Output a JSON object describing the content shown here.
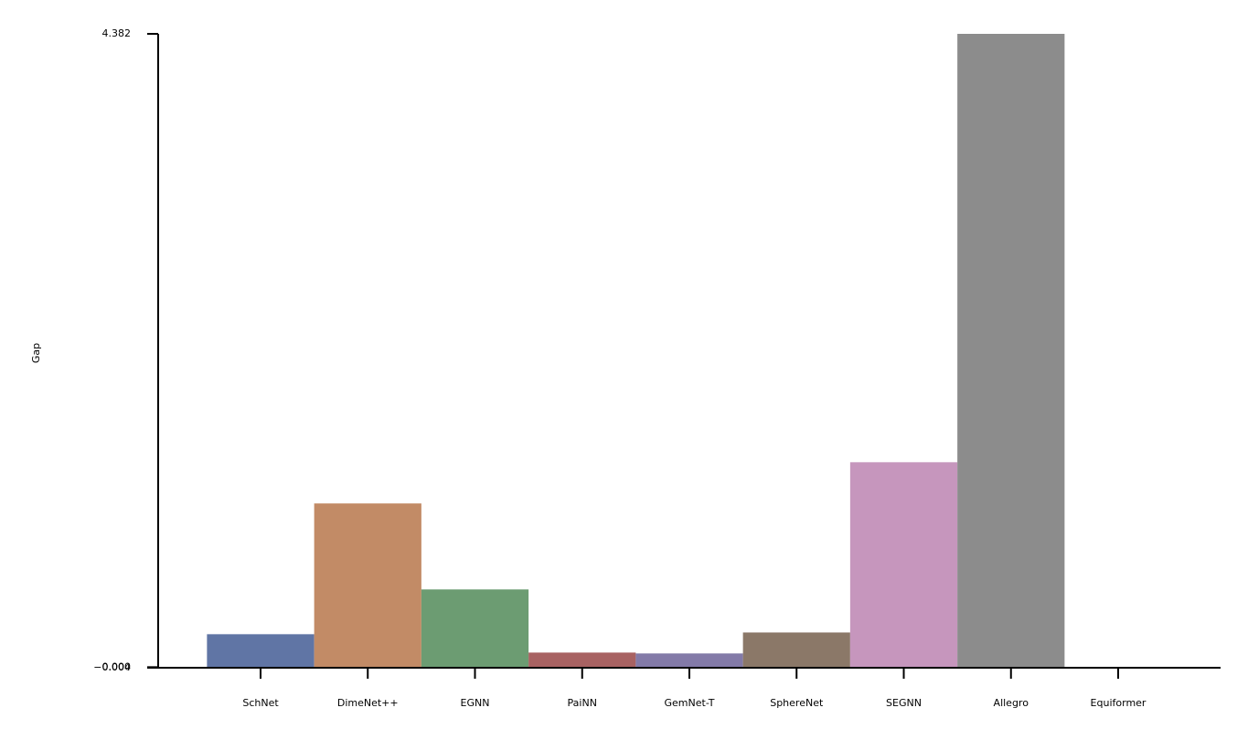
{
  "chart_data": {
    "type": "bar",
    "y_label": "Gap",
    "categories": [
      "SchNet",
      "DimeNet++",
      "EGNN",
      "PaiNN",
      "GemNet-T",
      "SphereNet",
      "SEGNN",
      "Allegro",
      "Equiformer"
    ],
    "values": [
      0.228,
      1.133,
      0.538,
      0.101,
      0.095,
      0.24,
      1.418,
      4.382,
      -0.004
    ],
    "colors": [
      "#6075a5",
      "#c28b66",
      "#6c9c72",
      "#a86262",
      "#837aa8",
      "#8b7868",
      "#c696bd",
      "#8c8c8c",
      "#c5b97e"
    ],
    "ylim": [
      -0.004,
      4.382
    ],
    "yticks": [
      {
        "value": -0.004,
        "label": "−0.004"
      },
      {
        "value": 0,
        "label": "0.000"
      },
      4.382
    ]
  }
}
